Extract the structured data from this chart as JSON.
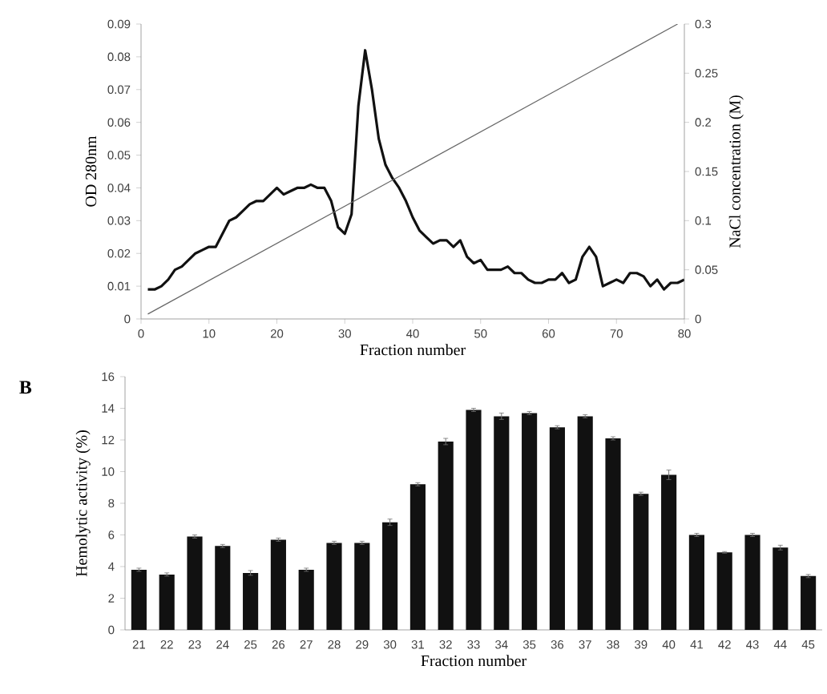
{
  "chart_data": [
    {
      "type": "line",
      "xlabel": "Fraction number",
      "ylabel": "OD 280nm",
      "y2label": "NaCl concentration (M)",
      "xlim": [
        0,
        80
      ],
      "xticks": [
        0,
        10,
        20,
        30,
        40,
        50,
        60,
        70,
        80
      ],
      "ylim": [
        0,
        0.09
      ],
      "yticks": [
        0,
        0.01,
        0.02,
        0.03,
        0.04,
        0.05,
        0.06,
        0.07,
        0.08,
        0.09
      ],
      "y2lim": [
        0,
        0.3
      ],
      "y2ticks": [
        0,
        0.05,
        0.1,
        0.15,
        0.2,
        0.25,
        0.3
      ],
      "series": [
        {
          "color": "#111111",
          "x": [
            1,
            2,
            3,
            4,
            5,
            6,
            7,
            8,
            9,
            10,
            11,
            12,
            13,
            14,
            15,
            16,
            17,
            18,
            19,
            20,
            21,
            22,
            23,
            24,
            25,
            26,
            27,
            28,
            29,
            30,
            31,
            32,
            33,
            34,
            35,
            36,
            37,
            38,
            39,
            40,
            41,
            42,
            43,
            44,
            45,
            46,
            47,
            48,
            49,
            50,
            51,
            52,
            53,
            54,
            55,
            56,
            57,
            58,
            59,
            60,
            61,
            62,
            63,
            64,
            65,
            66,
            67,
            68,
            69,
            70,
            71,
            72,
            73,
            74,
            75,
            76,
            77,
            78,
            79,
            80
          ],
          "values": [
            0.009,
            0.009,
            0.01,
            0.012,
            0.015,
            0.016,
            0.018,
            0.02,
            0.021,
            0.022,
            0.022,
            0.026,
            0.03,
            0.031,
            0.033,
            0.035,
            0.036,
            0.036,
            0.038,
            0.04,
            0.038,
            0.039,
            0.04,
            0.04,
            0.041,
            0.04,
            0.04,
            0.036,
            0.028,
            0.026,
            0.032,
            0.065,
            0.082,
            0.07,
            0.055,
            0.047,
            0.043,
            0.04,
            0.036,
            0.031,
            0.027,
            0.025,
            0.023,
            0.024,
            0.024,
            0.022,
            0.024,
            0.019,
            0.017,
            0.018,
            0.015,
            0.015,
            0.015,
            0.016,
            0.014,
            0.014,
            0.012,
            0.011,
            0.011,
            0.012,
            0.012,
            0.014,
            0.011,
            0.012,
            0.019,
            0.022,
            0.019,
            0.01,
            0.011,
            0.012,
            0.011,
            0.014,
            0.014,
            0.013,
            0.01,
            0.012,
            0.009,
            0.011,
            0.011,
            0.012
          ]
        },
        {
          "color": "#666666",
          "axis": "y2",
          "x": [
            1,
            79
          ],
          "values": [
            0.005,
            0.3
          ]
        }
      ]
    },
    {
      "type": "bar",
      "title": "B",
      "xlabel": "Fraction number",
      "ylabel": "Hemolytic activity (%)",
      "color": "#111111",
      "ylim": [
        0,
        16
      ],
      "yticks": [
        0,
        2,
        4,
        6,
        8,
        10,
        12,
        14,
        16
      ],
      "categories": [
        "21",
        "22",
        "23",
        "24",
        "25",
        "26",
        "27",
        "28",
        "29",
        "30",
        "31",
        "32",
        "33",
        "34",
        "35",
        "36",
        "37",
        "38",
        "39",
        "40",
        "41",
        "42",
        "43",
        "44",
        "45"
      ],
      "values": [
        3.8,
        3.5,
        5.9,
        5.3,
        3.6,
        5.7,
        3.8,
        5.5,
        5.5,
        6.8,
        9.2,
        11.9,
        13.9,
        13.5,
        13.7,
        12.8,
        13.5,
        12.1,
        8.6,
        9.8,
        6.0,
        4.9,
        6.0,
        5.2,
        3.4
      ],
      "errors": [
        0.1,
        0.1,
        0.1,
        0.1,
        0.15,
        0.1,
        0.1,
        0.1,
        0.1,
        0.2,
        0.1,
        0.2,
        0.1,
        0.2,
        0.1,
        0.1,
        0.1,
        0.1,
        0.1,
        0.3,
        0.1,
        0.05,
        0.1,
        0.15,
        0.1
      ]
    }
  ]
}
